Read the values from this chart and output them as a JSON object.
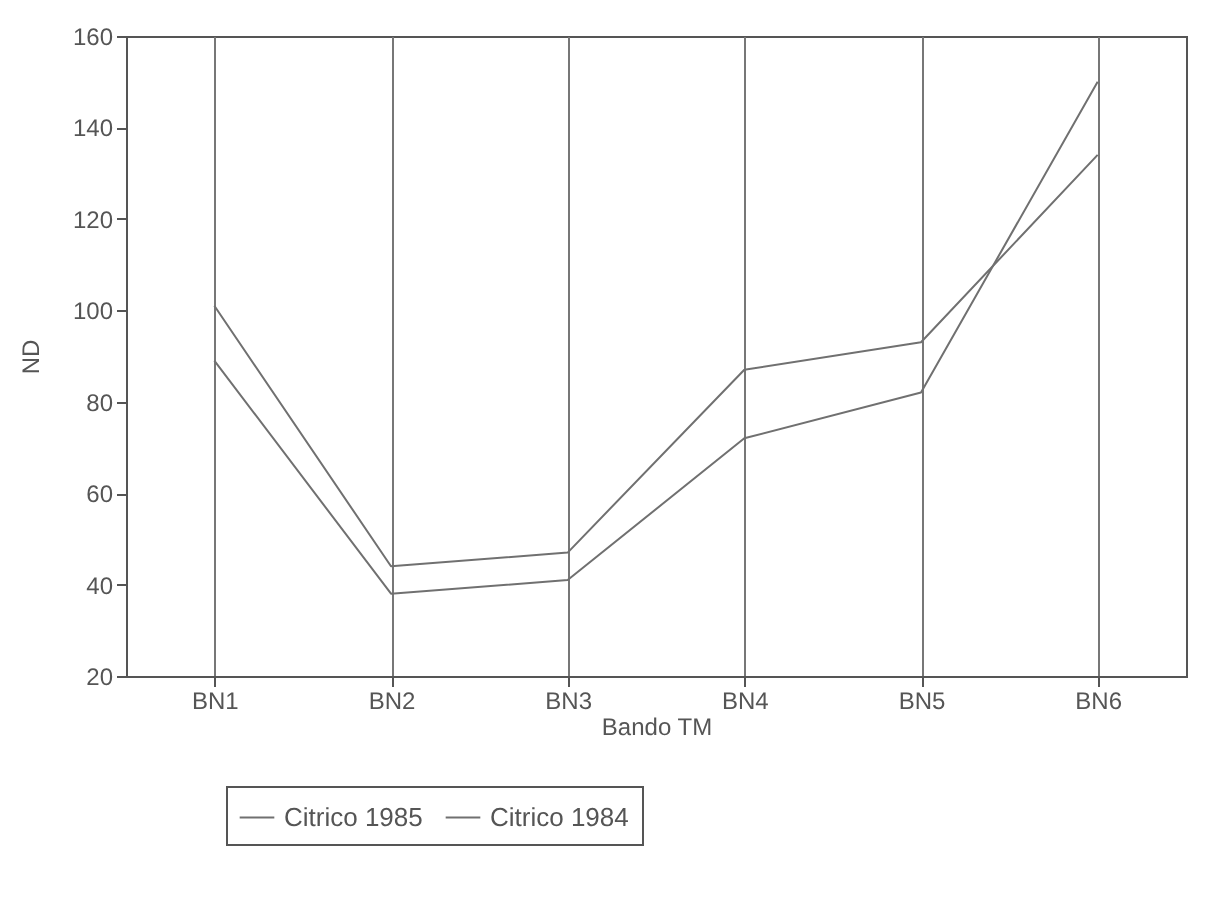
{
  "chart_data": {
    "type": "line",
    "xlabel": "Bando TM",
    "ylabel": "ND",
    "categories": [
      "BN1",
      "BN2",
      "BN3",
      "BN4",
      "BN5",
      "BN6"
    ],
    "series": [
      {
        "name": "Citrico 1985",
        "color": "#707070",
        "values": [
          101,
          44,
          47,
          87,
          93,
          134
        ]
      },
      {
        "name": "Citrico 1984",
        "color": "#707070",
        "values": [
          89,
          38,
          41,
          72,
          82,
          150
        ]
      }
    ],
    "ylim": [
      20,
      160
    ],
    "yticks": [
      20,
      40,
      60,
      80,
      100,
      120,
      140,
      160
    ],
    "grid": "x",
    "legend": "bottom left",
    "marker": "none",
    "line_style": "solid"
  }
}
